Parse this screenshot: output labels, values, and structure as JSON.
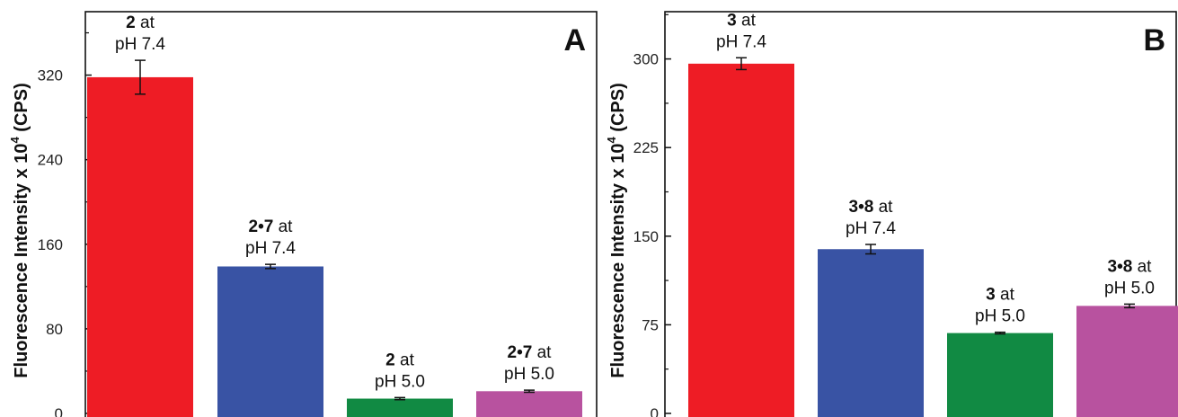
{
  "chart_data": [
    {
      "type": "bar",
      "panel_letter": "A",
      "ylabel": "Fluorescence Intensity x 10",
      "ylabel_superscript": "4",
      "ylabel_unit": "(CPS)",
      "ylim": [
        0,
        380
      ],
      "yticks": [
        0,
        80,
        160,
        240,
        320
      ],
      "bars": [
        {
          "label_bold": "2",
          "label_rest": " at",
          "label_line2": "pH 7.4",
          "value": 318,
          "error": 16,
          "color": "#ee1c25"
        },
        {
          "label_bold": "2•7",
          "label_rest": " at",
          "label_line2": "pH 7.4",
          "value": 139,
          "error": 2,
          "color": "#3953a4"
        },
        {
          "label_bold": "2",
          "label_rest": " at",
          "label_line2": "pH 5.0",
          "value": 14,
          "error": 1,
          "color": "#118a43"
        },
        {
          "label_bold": "2•7",
          "label_rest": " at",
          "label_line2": "pH 5.0",
          "value": 21,
          "error": 1,
          "color": "#b8529f"
        }
      ]
    },
    {
      "type": "bar",
      "panel_letter": "B",
      "ylabel": "Fluorescence Intensity x 10",
      "ylabel_superscript": "4",
      "ylabel_unit": "(CPS)",
      "ylim": [
        0,
        340
      ],
      "yticks": [
        0,
        75,
        150,
        225,
        300
      ],
      "bars": [
        {
          "label_bold": "3",
          "label_rest": " at",
          "label_line2": "pH 7.4",
          "value": 296,
          "error": 5,
          "color": "#ee1c25"
        },
        {
          "label_bold": "3•8",
          "label_rest": " at",
          "label_line2": "pH 7.4",
          "value": 139,
          "error": 4,
          "color": "#3953a4"
        },
        {
          "label_bold": "3",
          "label_rest": " at",
          "label_line2": "pH 5.0",
          "value": 68,
          "error": 0.7,
          "color": "#118a43"
        },
        {
          "label_bold": "3•8",
          "label_rest": " at",
          "label_line2": "pH 5.0",
          "value": 91,
          "error": 1.5,
          "color": "#b8529f"
        }
      ]
    }
  ]
}
